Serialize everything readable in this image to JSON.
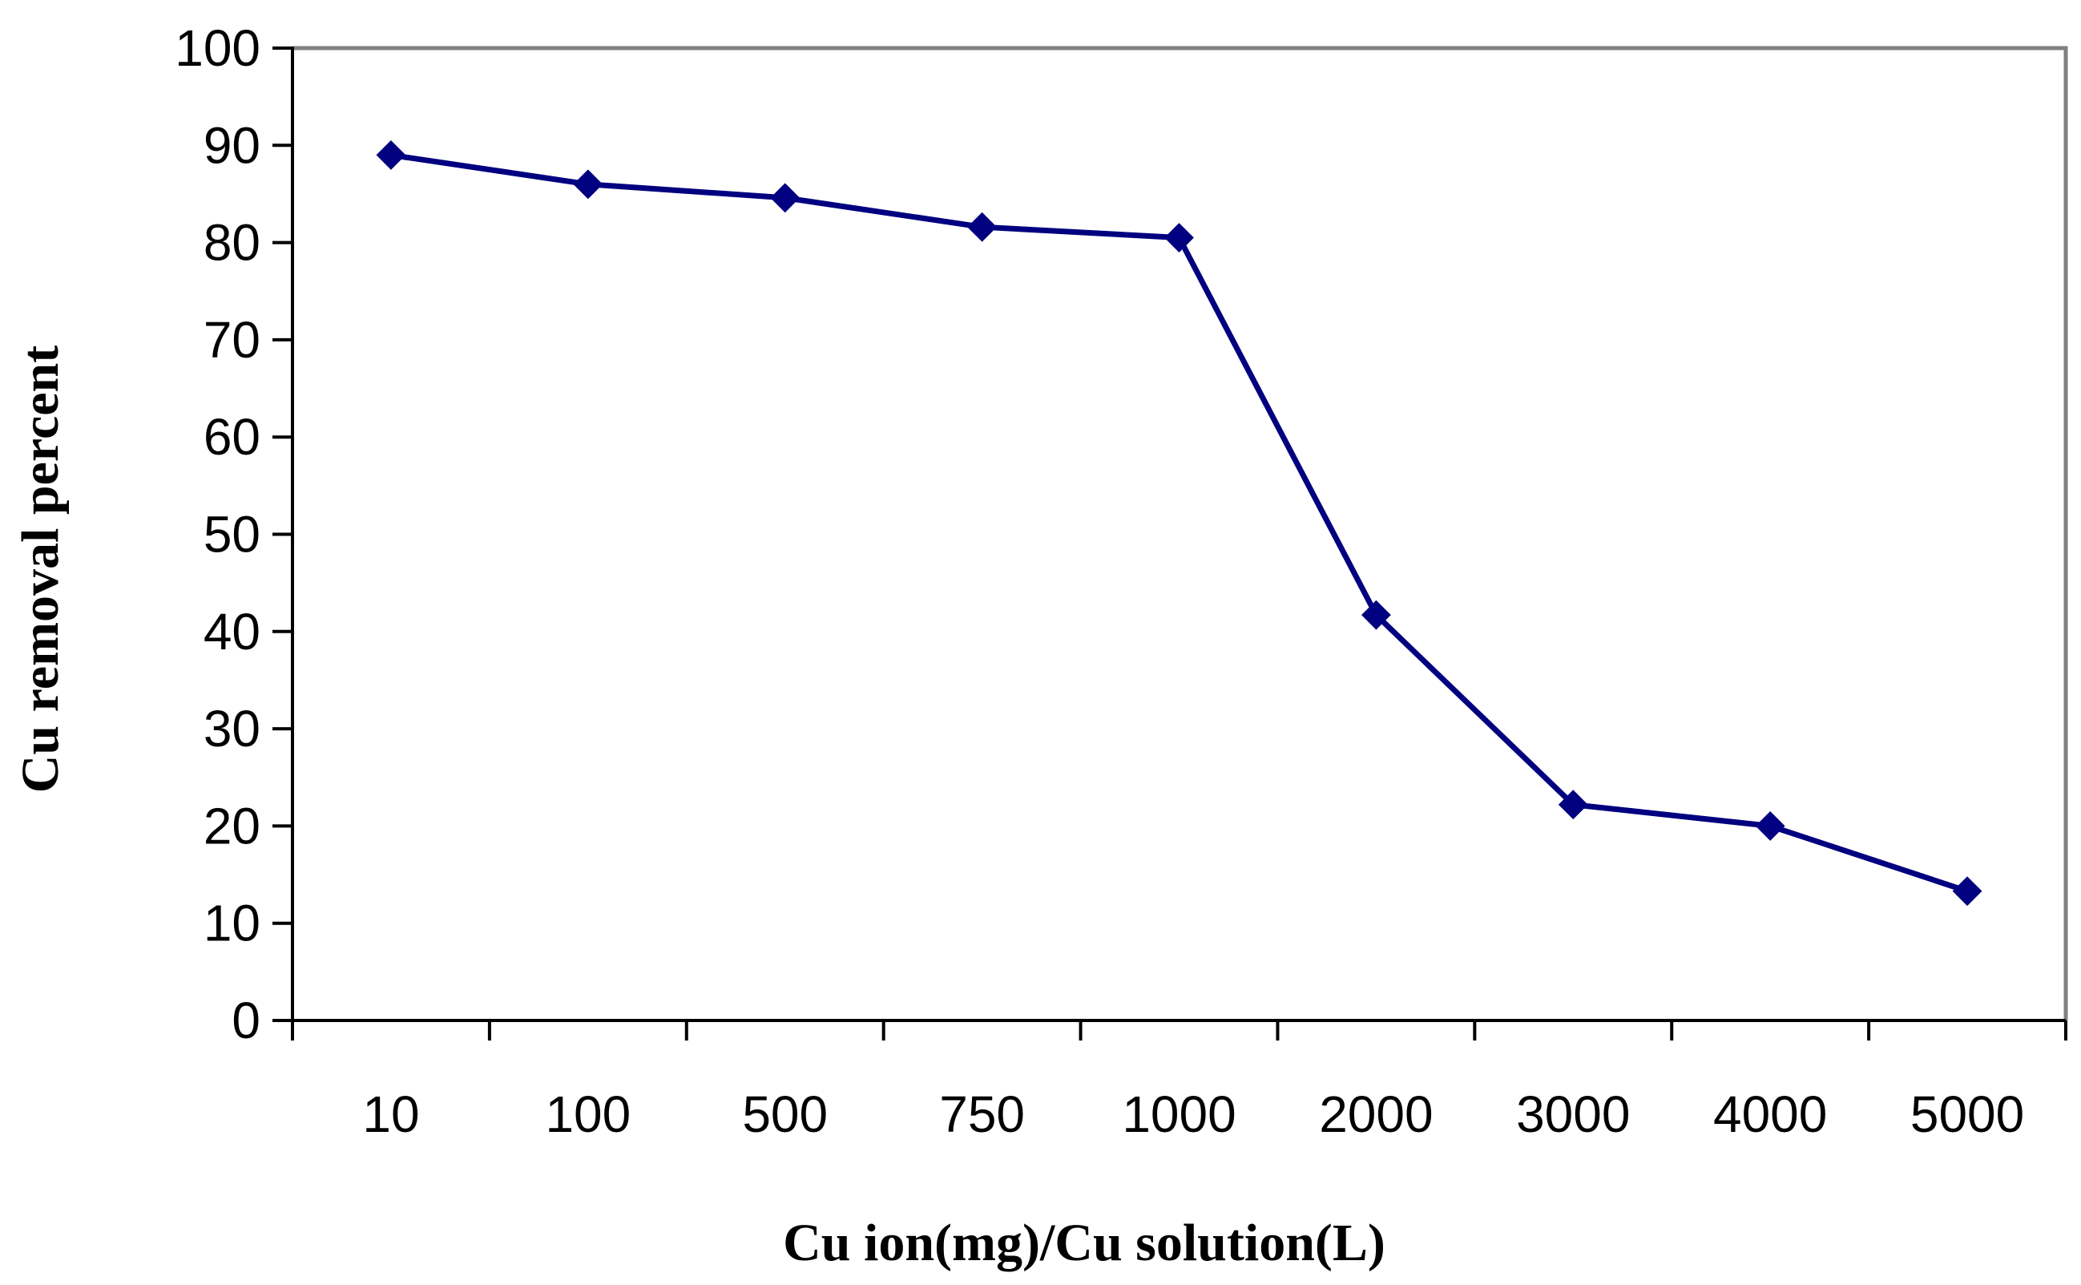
{
  "chart_data": {
    "type": "line",
    "title": "",
    "xlabel": "Cu ion(mg)/Cu solution(L)",
    "ylabel": "Cu removal percent",
    "categories": [
      "10",
      "100",
      "500",
      "750",
      "1000",
      "2000",
      "3000",
      "4000",
      "5000"
    ],
    "series": [
      {
        "values": [
          89,
          86,
          84.6,
          81.6,
          80.5,
          41.7,
          22.2,
          20,
          13.3
        ]
      }
    ],
    "ylim": [
      0,
      100
    ],
    "yticks": [
      "0",
      "10",
      "20",
      "30",
      "40",
      "50",
      "60",
      "70",
      "80",
      "90",
      "100"
    ],
    "grid": false,
    "legend": "none",
    "colors": {
      "series": "#000080",
      "plot_border": "#808080",
      "axis": "#000000"
    }
  }
}
